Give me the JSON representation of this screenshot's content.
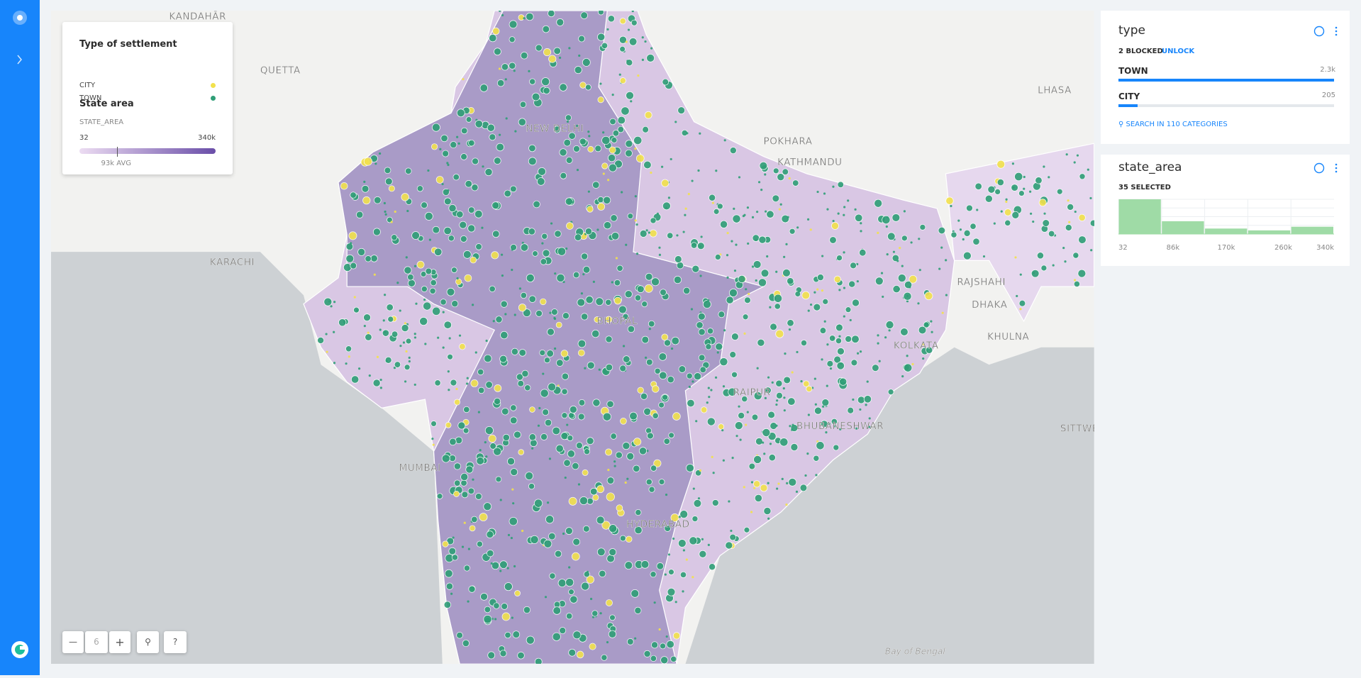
{
  "legend": {
    "type_title": "Type of settlement",
    "type_items": [
      {
        "label": "CITY",
        "color": "#f2e14c"
      },
      {
        "label": "TOWN",
        "color": "#2f9e77"
      }
    ],
    "area_title": "State area",
    "area_field": "STATE_AREA",
    "min": 32,
    "max": {
      "value": 340000,
      "label": "340k"
    },
    "avg": {
      "value": 93000,
      "label": "93k AVG"
    }
  },
  "map_labels": [
    "KANDAHĀR",
    "QUETTA",
    "KARACHI",
    "NEW DELHI",
    "POKHARA",
    "KATHMANDU",
    "LHASA",
    "DHAKA",
    "RAJSHAHI",
    "KHULNA",
    "KOLKATA",
    "BHOPAL",
    "RAIPUR",
    "BHUBANESHWAR",
    "MUMBAI",
    "HYDERABAD",
    "SITTWE",
    "Bay of Bengal"
  ],
  "zoom": 6,
  "zoom_help": "?",
  "type_widget": {
    "title": "type",
    "status": "2 BLOCKED",
    "action": "UNLOCK",
    "categories": [
      {
        "name": "TOWN",
        "value": 2300,
        "value_label": "2.3k"
      },
      {
        "name": "CITY",
        "value": 205,
        "value_label": "205"
      }
    ],
    "search": "SEARCH IN 110 CATEGORIES"
  },
  "area_widget": {
    "title": "state_area",
    "status": "35 SELECTED",
    "counts": [
      19,
      7,
      3,
      2,
      4
    ],
    "axis_labels": [
      32,
      {
        "value": 86000,
        "label": "86k"
      },
      {
        "value": 170000,
        "label": "170k"
      },
      {
        "value": 260000,
        "label": "260k"
      },
      {
        "value": 340000,
        "label": "340k"
      }
    ]
  }
}
